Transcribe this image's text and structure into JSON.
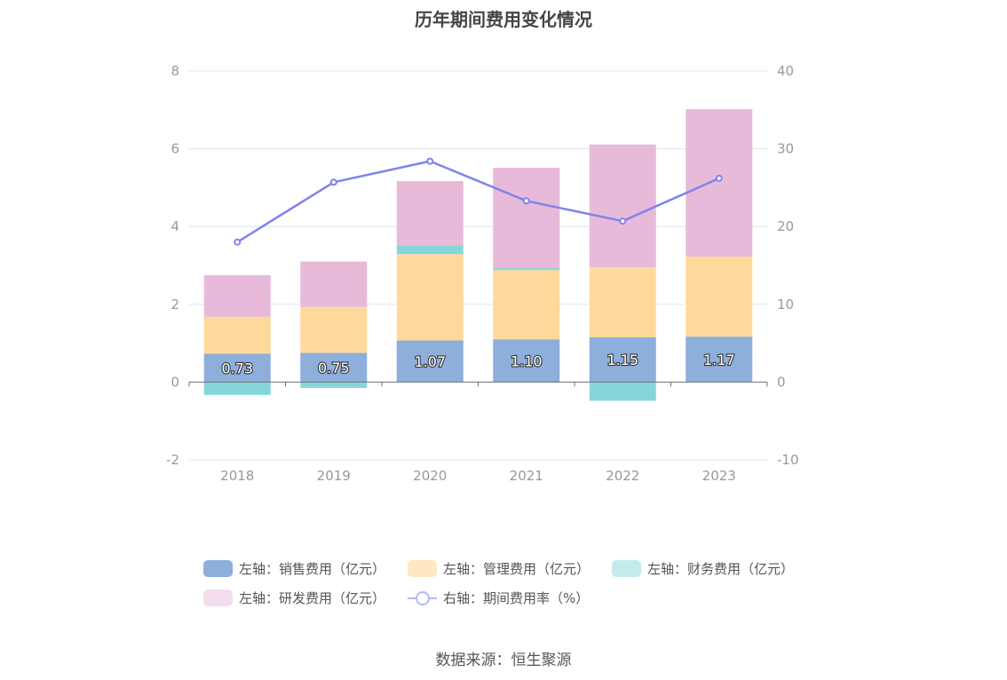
{
  "chart_data": {
    "type": "bar",
    "title": "历年期间费用变化情况",
    "categories": [
      "2018",
      "2019",
      "2020",
      "2021",
      "2022",
      "2023"
    ],
    "left_axis": {
      "ylim": [
        -2,
        8
      ],
      "ticks": [
        "-2",
        "0",
        "2",
        "4",
        "6",
        "8"
      ]
    },
    "right_axis": {
      "ylim": [
        -10,
        40
      ],
      "ticks": [
        "-10",
        "0",
        "10",
        "20",
        "30",
        "40"
      ]
    },
    "grid": true,
    "series": [
      {
        "name": "左轴：销售费用（亿元）",
        "axis": "left",
        "kind": "stacked-bar",
        "color": "#8eaedb",
        "values": [
          0.73,
          0.75,
          1.07,
          1.1,
          1.15,
          1.17
        ],
        "labels": [
          "0.73",
          "0.75",
          "1.07",
          "1.10",
          "1.15",
          "1.17"
        ]
      },
      {
        "name": "左轴：管理费用（亿元）",
        "axis": "left",
        "kind": "stacked-bar",
        "color": "#ffd99c",
        "values": [
          0.95,
          1.18,
          2.22,
          1.78,
          1.8,
          2.05
        ]
      },
      {
        "name": "左轴：财务费用（亿元）",
        "axis": "left",
        "kind": "stacked-bar",
        "color": "#86d6d9",
        "values": [
          -0.33,
          -0.15,
          0.23,
          0.05,
          -0.48,
          0.0
        ]
      },
      {
        "name": "左轴：研发费用（亿元）",
        "axis": "left",
        "kind": "stacked-bar",
        "color": "#e8bad9",
        "values": [
          1.07,
          1.17,
          1.65,
          2.58,
          3.16,
          3.8
        ]
      },
      {
        "name": "右轴：期间费用率（%）",
        "axis": "right",
        "kind": "line",
        "color": "#8083ec",
        "values": [
          18.0,
          25.7,
          28.4,
          23.3,
          20.7,
          26.2
        ]
      }
    ],
    "legend_position": "bottom"
  },
  "source": "数据来源：恒生聚源"
}
